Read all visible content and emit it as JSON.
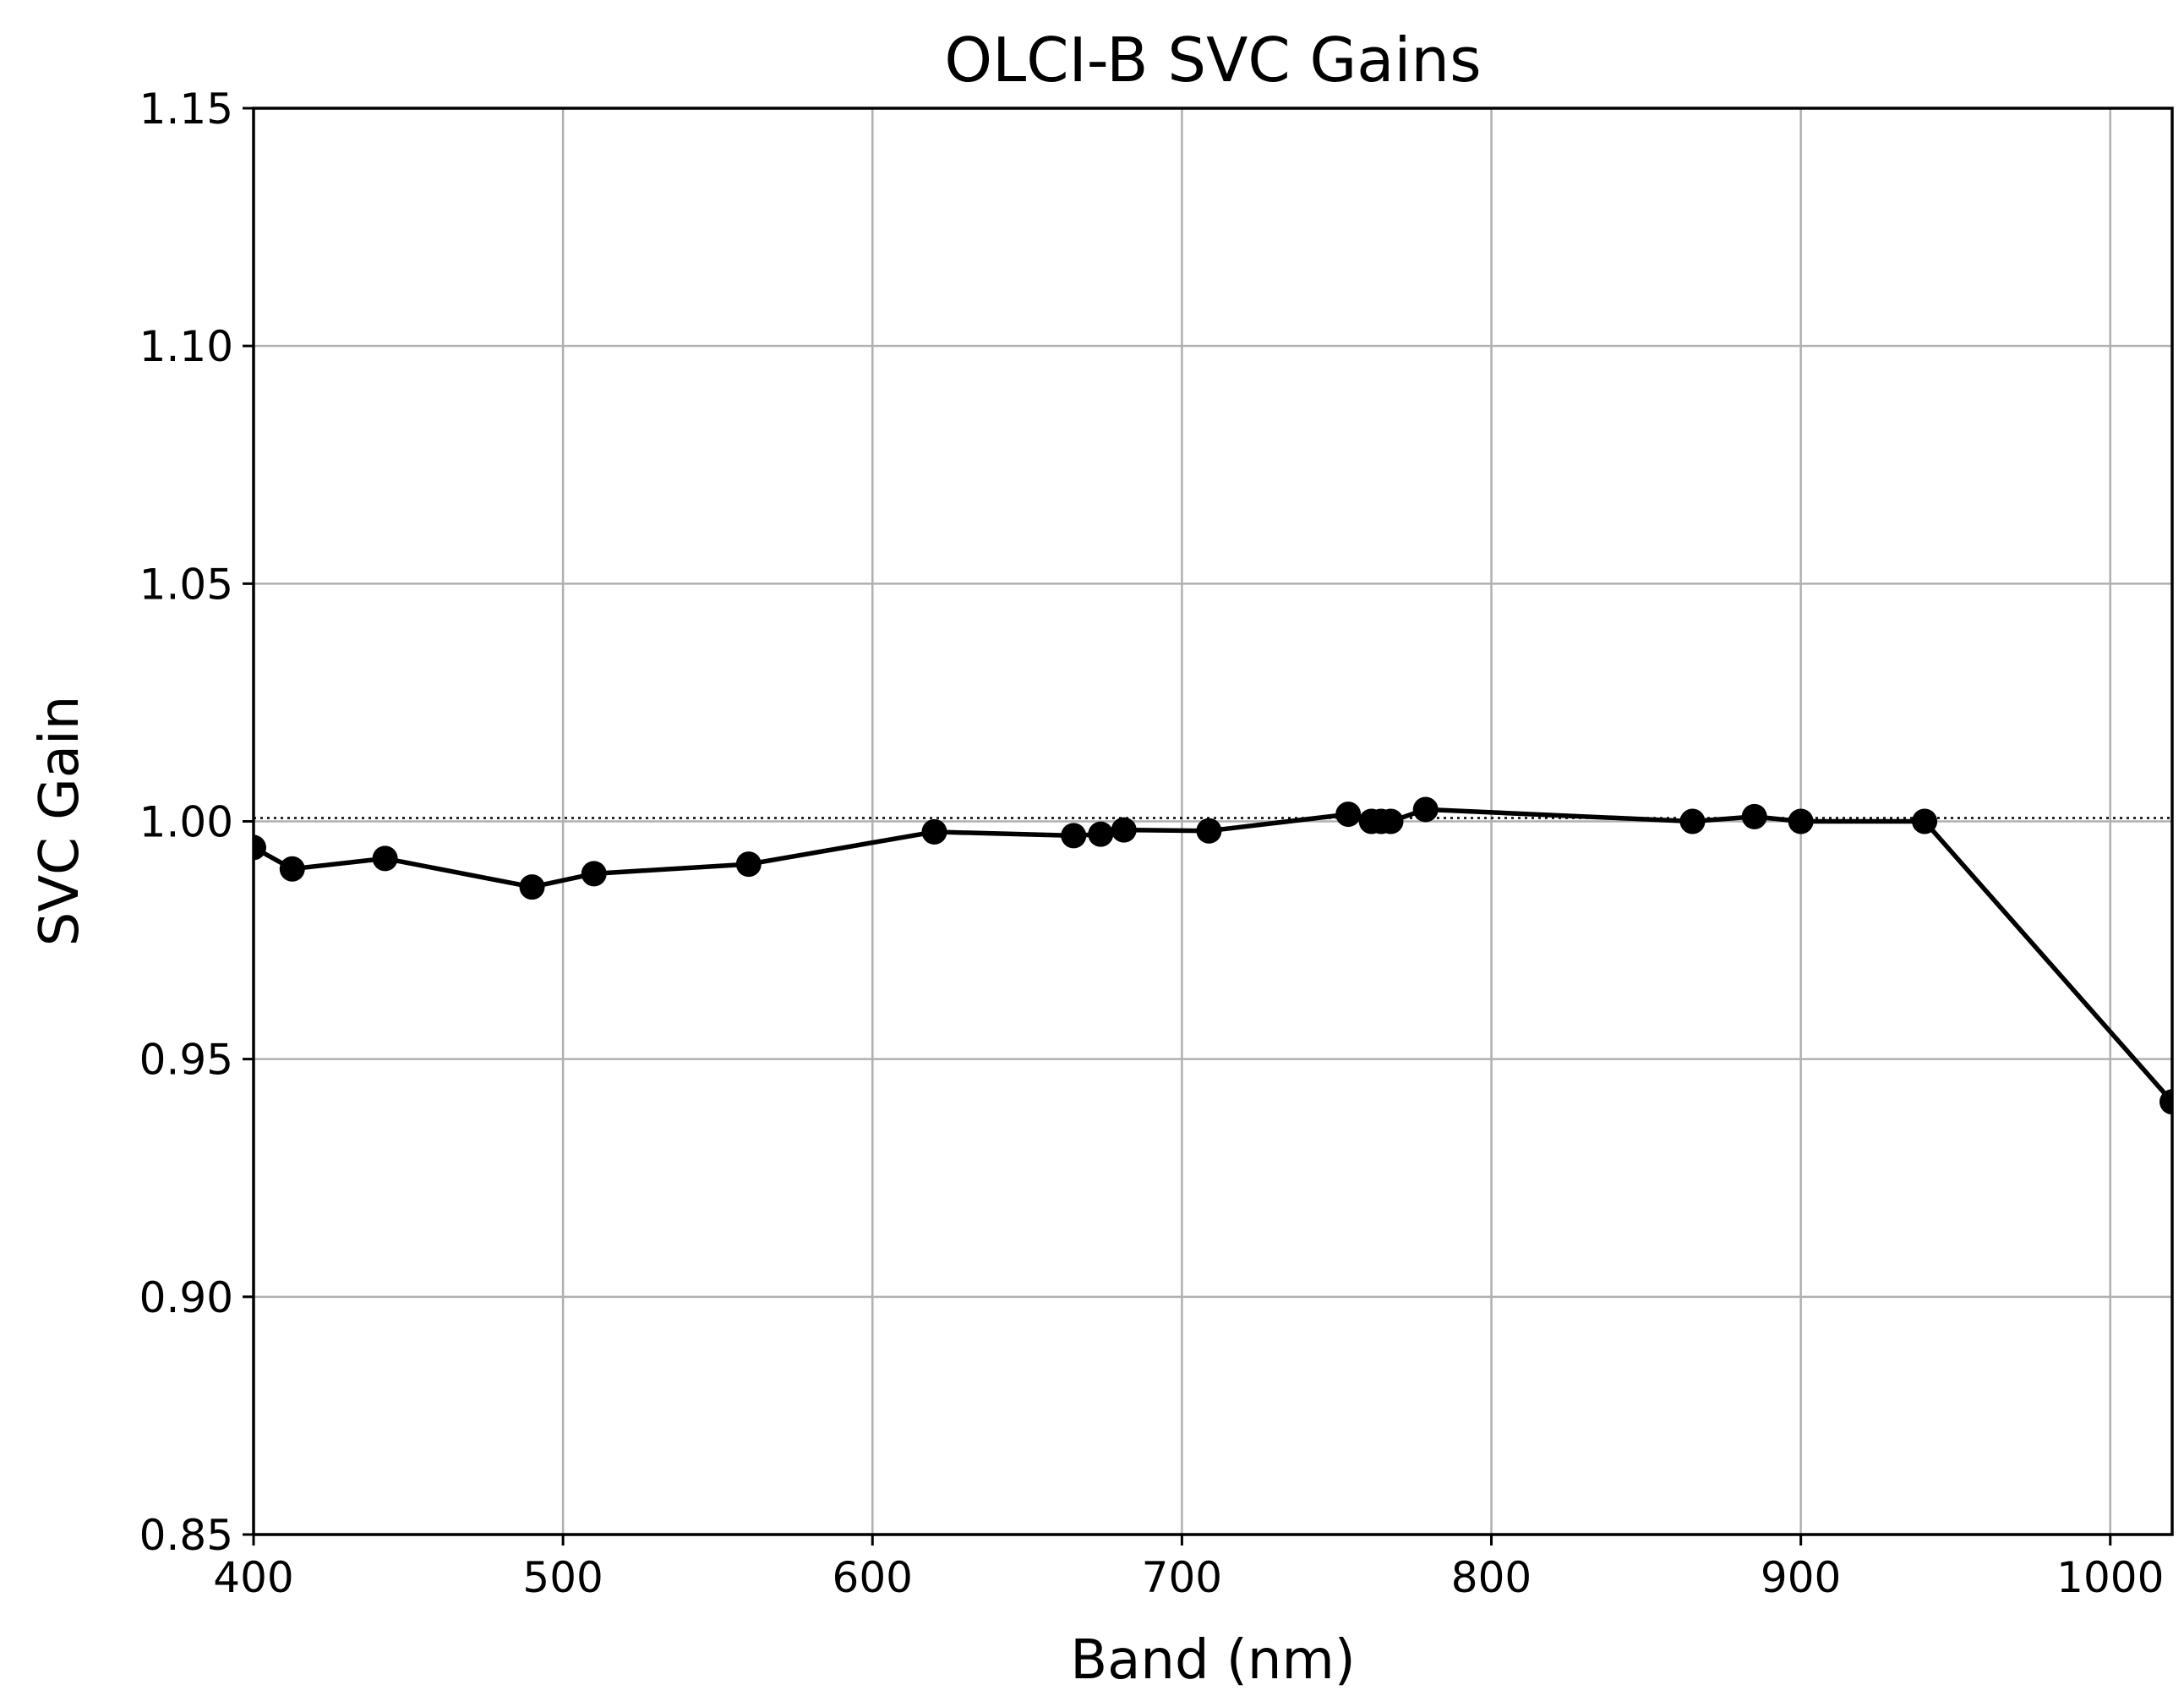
{
  "chart_data": {
    "type": "line",
    "title": "OLCI-B SVC Gains",
    "xlabel": "Band (nm)",
    "ylabel": "SVC Gain",
    "xlim": [
      400,
      1020
    ],
    "ylim": [
      0.85,
      1.15
    ],
    "xticks": [
      400,
      500,
      600,
      700,
      800,
      900,
      1000
    ],
    "yticks": [
      0.85,
      0.9,
      0.95,
      1.0,
      1.05,
      1.1,
      1.15
    ],
    "xtick_labels": [
      "400",
      "500",
      "600",
      "700",
      "800",
      "900",
      "1000"
    ],
    "ytick_labels": [
      "0.85",
      "0.90",
      "0.95",
      "1.00",
      "1.05",
      "1.10",
      "1.15"
    ],
    "grid": true,
    "legend": "none",
    "reference_line": {
      "y": 1.0,
      "style": "dotted"
    },
    "series": [
      {
        "marker": "circle",
        "color": "#000000",
        "x": [
          400,
          412.5,
          442.5,
          490,
          510,
          560,
          620,
          665,
          673.75,
          681.25,
          708.75,
          753.75,
          761.25,
          764.375,
          767.5,
          778.75,
          865,
          885,
          900,
          940,
          1020
        ],
        "y": [
          0.9945,
          0.99,
          0.9922,
          0.9862,
          0.989,
          0.991,
          0.9978,
          0.997,
          0.9973,
          0.9982,
          0.998,
          1.0015,
          1.0,
          1.0,
          1.0,
          1.0025,
          1.0,
          1.001,
          1.0,
          1.0,
          0.941
        ]
      }
    ]
  }
}
